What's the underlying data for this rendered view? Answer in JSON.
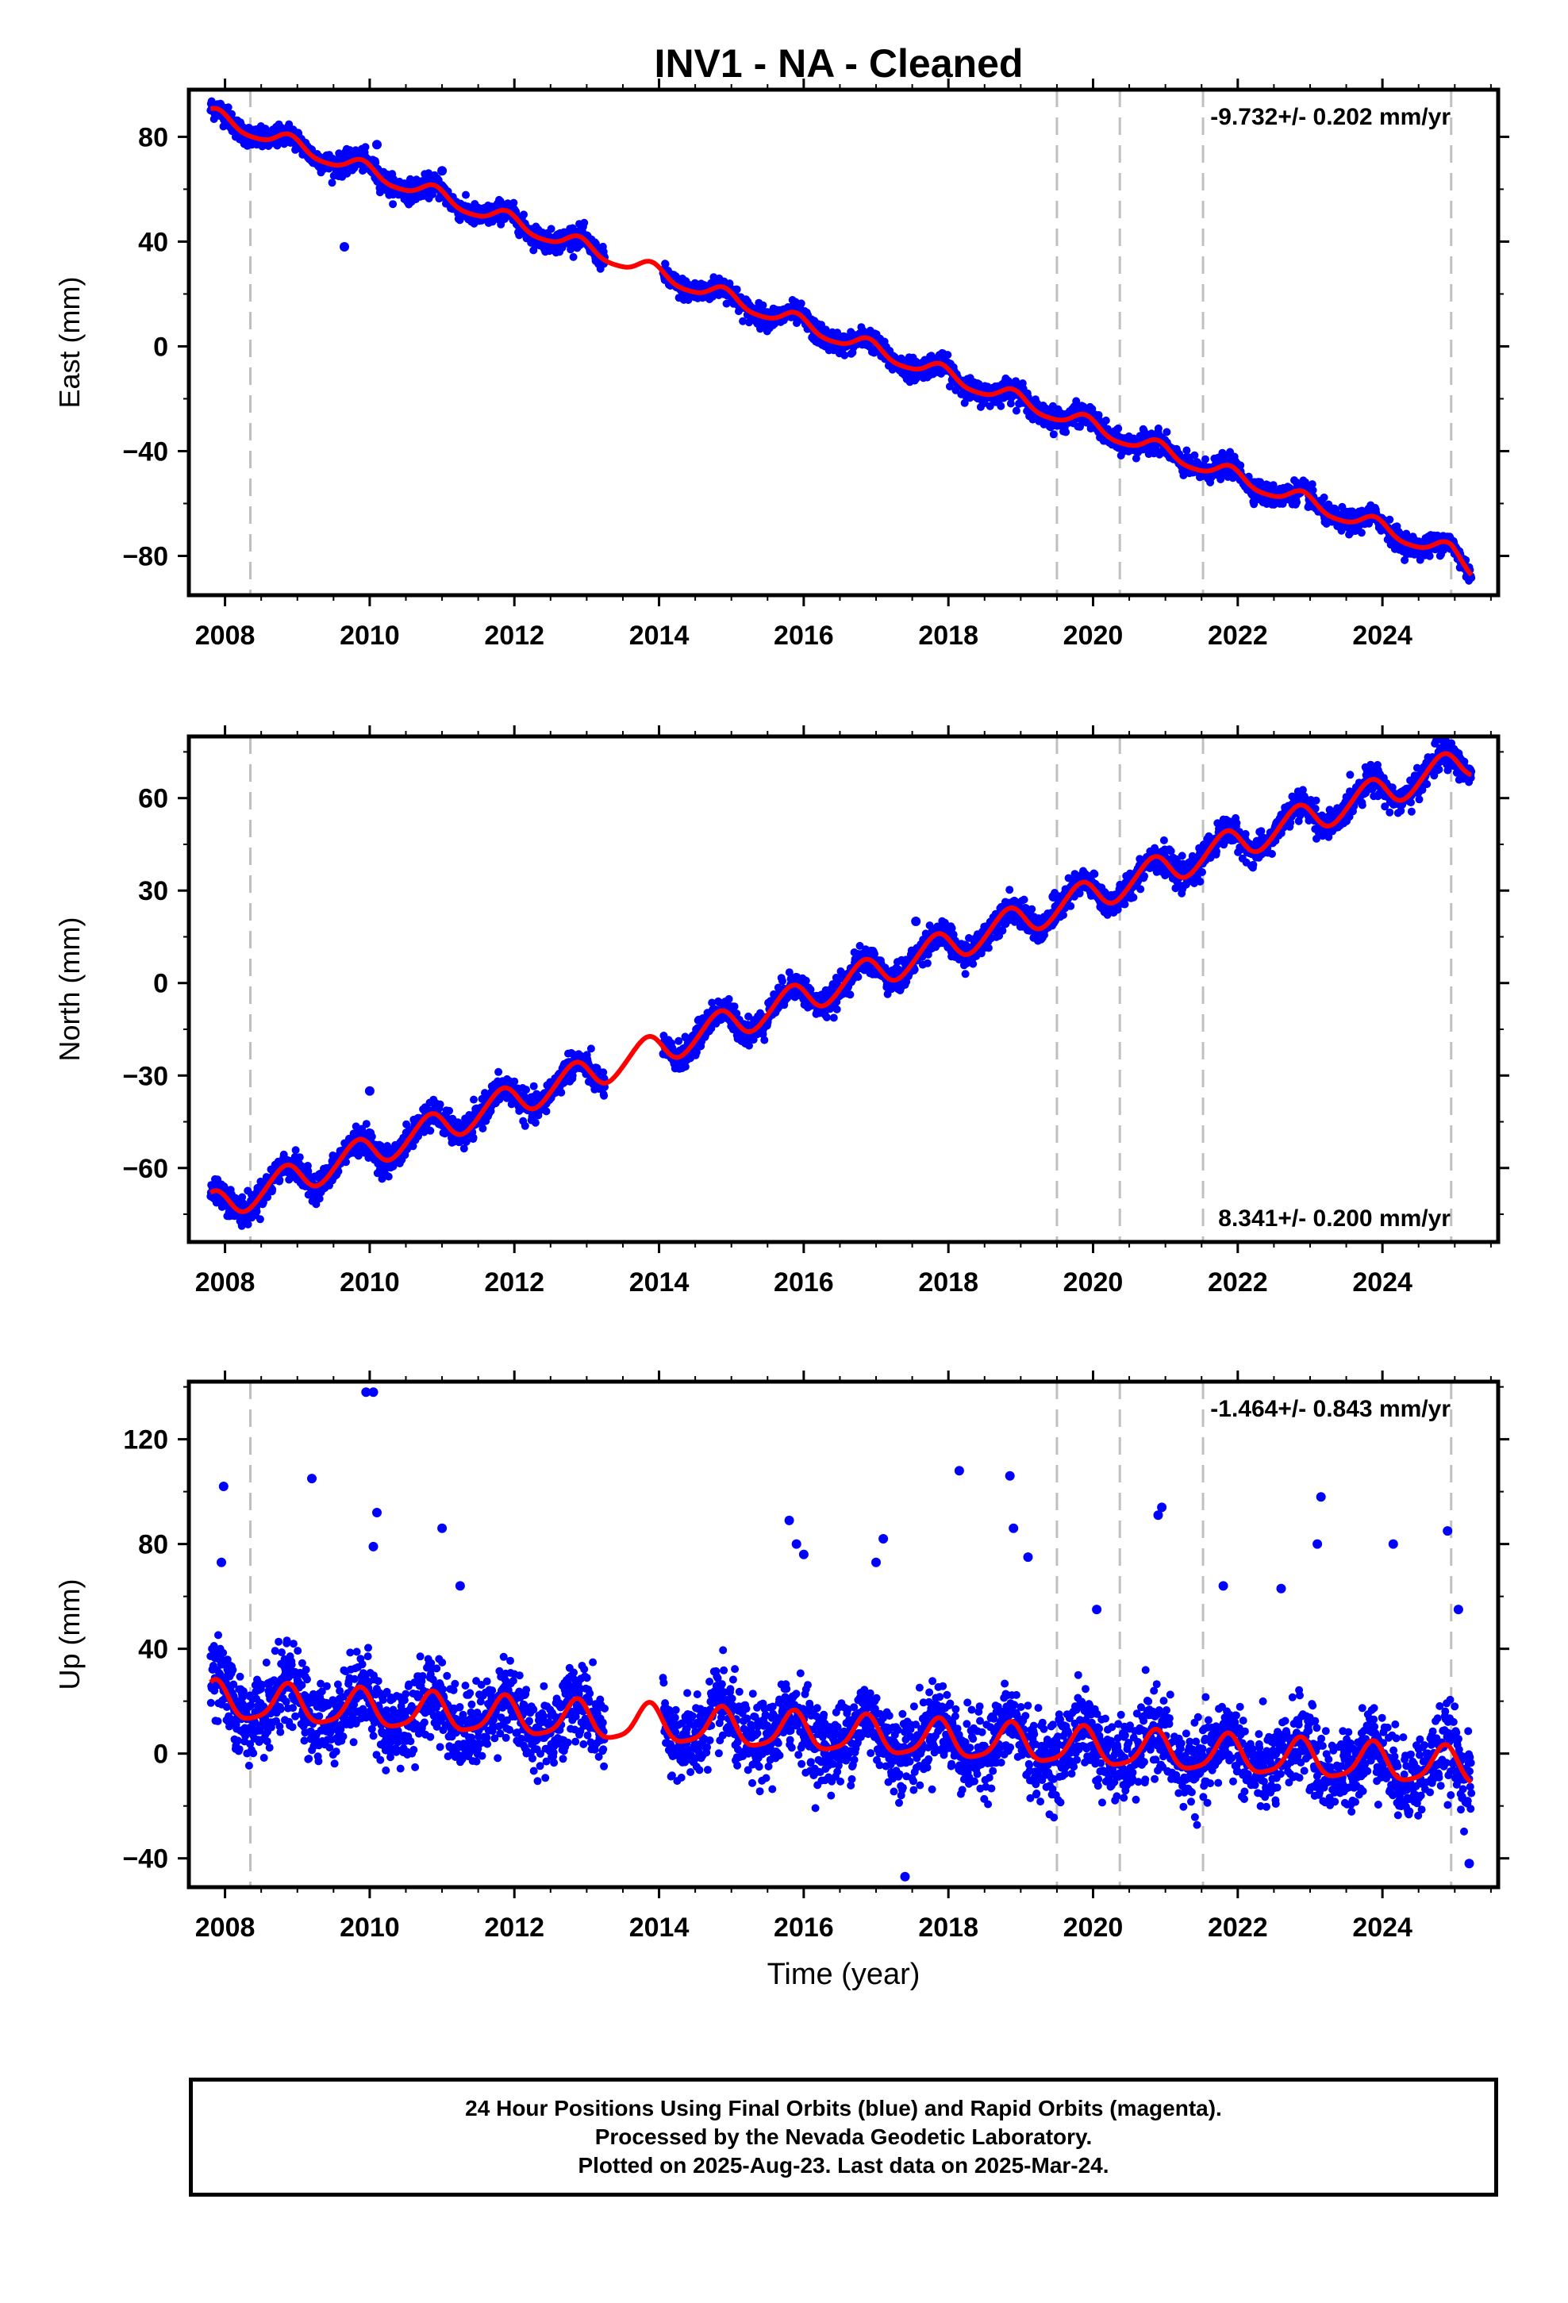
{
  "title": "INV1  - NA - Cleaned",
  "colors": {
    "data_points": "#0000ff",
    "model_line": "#ff0000",
    "event_lines": "#c0c0c0",
    "axes": "#000000"
  },
  "chart_data": [
    {
      "type": "scatter",
      "ylabel": "East (mm)",
      "xlabel": "",
      "xlim": [
        2007.5,
        2025.6
      ],
      "ylim": [
        -95,
        98
      ],
      "yticks": [
        -80,
        -40,
        0,
        40,
        80
      ],
      "yticklabels": [
        "−80",
        "−40",
        "0",
        "40",
        "80"
      ],
      "xticks": [
        2008,
        2010,
        2012,
        2014,
        2016,
        2018,
        2020,
        2022,
        2024
      ],
      "xticklabels": [
        "2008",
        "2010",
        "2012",
        "2014",
        "2016",
        "2018",
        "2020",
        "2022",
        "2024"
      ],
      "rate_label": "-9.732+/- 0.202 mm/yr",
      "rate_label_position": "top-right",
      "grid": false,
      "event_lines_x": [
        2008.35,
        2019.5,
        2020.37,
        2021.52,
        2024.95
      ],
      "model": {
        "t0": 2007.8,
        "intercept": 88.0,
        "rate": -9.732,
        "annual_amp": 3.0,
        "annual_phase": 1.0,
        "semi_amp": 0.6,
        "semi_phase": 0.3,
        "end_offset": -4.0
      },
      "scatter": {
        "gap": [
          2013.25,
          2014.05
        ],
        "start": 2007.8,
        "end": 2025.23,
        "noise": 2.0,
        "outliers": [
          [
            2009.65,
            38
          ],
          [
            2010.1,
            77
          ],
          [
            2011.0,
            67
          ]
        ]
      },
      "series": [
        {
          "name": "24 Hour Positions Using Final Orbits (blue)",
          "type": "scatter"
        },
        {
          "name": "",
          "type": "line"
        }
      ]
    },
    {
      "type": "scatter",
      "ylabel": "North (mm)",
      "xlabel": "",
      "xlim": [
        2007.5,
        2025.6
      ],
      "ylim": [
        -84,
        80
      ],
      "yticks": [
        -60,
        -30,
        0,
        30,
        60
      ],
      "yticklabels": [
        "−60",
        "−30",
        "0",
        "30",
        "60"
      ],
      "xticks": [
        2008,
        2010,
        2012,
        2014,
        2016,
        2018,
        2020,
        2022,
        2024
      ],
      "xticklabels": [
        "2008",
        "2010",
        "2012",
        "2014",
        "2016",
        "2018",
        "2020",
        "2022",
        "2024"
      ],
      "rate_label": "8.341+/- 0.200 mm/yr",
      "rate_label_position": "bottom-right",
      "grid": false,
      "event_lines_x": [
        2008.35,
        2019.5,
        2020.37,
        2021.52,
        2024.95
      ],
      "model": {
        "t0": 2007.8,
        "intercept": -73.0,
        "rate": 8.341,
        "annual_amp": 5.0,
        "annual_phase": 1.5,
        "semi_amp": 0.5,
        "semi_phase": 0.0,
        "end_offset": 0.0
      },
      "scatter": {
        "gap": [
          2013.25,
          2014.05
        ],
        "start": 2007.8,
        "end": 2025.23,
        "noise": 2.2,
        "outliers": [
          [
            2010.0,
            -35
          ],
          [
            2017.55,
            20
          ],
          [
            2019.45,
            28
          ]
        ]
      },
      "series": [
        {
          "name": "",
          "type": "scatter"
        },
        {
          "name": "",
          "type": "line"
        }
      ]
    },
    {
      "type": "scatter",
      "ylabel": "Up (mm)",
      "xlabel": "Time (year)",
      "xlim": [
        2007.5,
        2025.6
      ],
      "ylim": [
        -51,
        142
      ],
      "yticks": [
        -40,
        0,
        40,
        80,
        120
      ],
      "yticklabels": [
        "−40",
        "0",
        "40",
        "80",
        "120"
      ],
      "xticks": [
        2008,
        2010,
        2012,
        2014,
        2016,
        2018,
        2020,
        2022,
        2024
      ],
      "xticklabels": [
        "2008",
        "2010",
        "2012",
        "2014",
        "2016",
        "2018",
        "2020",
        "2022",
        "2024"
      ],
      "rate_label": "-1.464+/- 0.843 mm/yr",
      "rate_label_position": "top-right",
      "grid": false,
      "event_lines_x": [
        2008.35,
        2019.5,
        2020.37,
        2021.52,
        2024.95
      ],
      "model": {
        "t0": 2007.8,
        "intercept": 20.0,
        "rate": -1.464,
        "annual_amp": 7.0,
        "annual_phase": 1.2,
        "semi_amp": 1.5,
        "semi_phase": 0.5,
        "end_offset": 0.0
      },
      "scatter": {
        "gap": [
          2013.25,
          2014.05
        ],
        "start": 2007.8,
        "end": 2025.23,
        "noise": 7.5,
        "outliers": [
          [
            2007.98,
            102
          ],
          [
            2007.95,
            73
          ],
          [
            2009.2,
            105
          ],
          [
            2009.95,
            138
          ],
          [
            2010.05,
            138
          ],
          [
            2010.1,
            92
          ],
          [
            2010.05,
            79
          ],
          [
            2011.0,
            86
          ],
          [
            2011.25,
            64
          ],
          [
            2015.8,
            89
          ],
          [
            2015.9,
            80
          ],
          [
            2016.0,
            76
          ],
          [
            2017.1,
            82
          ],
          [
            2017.0,
            73
          ],
          [
            2018.15,
            108
          ],
          [
            2018.85,
            106
          ],
          [
            2018.9,
            86
          ],
          [
            2019.1,
            75
          ],
          [
            2020.05,
            55
          ],
          [
            2020.95,
            94
          ],
          [
            2020.9,
            91
          ],
          [
            2021.8,
            64
          ],
          [
            2022.6,
            63
          ],
          [
            2023.15,
            98
          ],
          [
            2023.1,
            80
          ],
          [
            2024.15,
            80
          ],
          [
            2024.9,
            85
          ],
          [
            2025.05,
            55
          ],
          [
            2017.4,
            -47
          ],
          [
            2025.2,
            -42
          ]
        ]
      },
      "series": [
        {
          "name": "",
          "type": "scatter"
        },
        {
          "name": "",
          "type": "line"
        }
      ]
    }
  ],
  "footer": {
    "line1": "24 Hour Positions Using Final Orbits (blue) and Rapid Orbits (magenta).",
    "line2": "Processed by the Nevada Geodetic Laboratory.",
    "line3": "Plotted on 2025-Aug-23. Last data on 2025-Mar-24."
  }
}
